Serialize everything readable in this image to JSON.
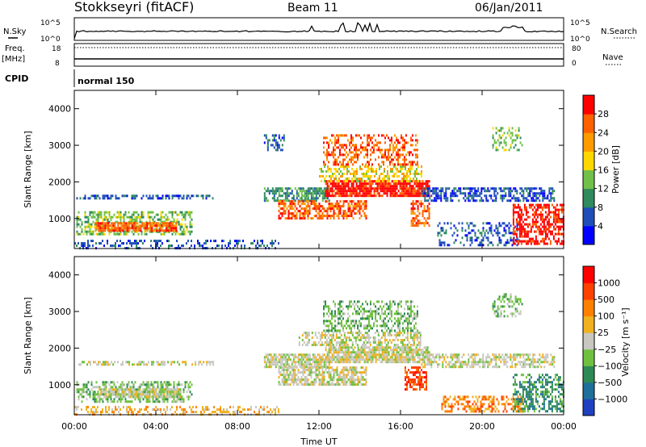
{
  "header": {
    "station": "Stokkseyri (fitACF)",
    "beam": "Beam 11",
    "date": "06/Jan/2011"
  },
  "top_panels": {
    "nsky_label": "N.Sky",
    "nsearch_label": "N.Search",
    "noise_tick_high": "10^5",
    "noise_tick_low": "10^0",
    "freq_label_1": "Freq.",
    "freq_label_2": "[MHz]",
    "freq_tick_high": "18",
    "freq_tick_low": "8",
    "nave_label": "Nave",
    "nave_tick_high": "80",
    "nave_tick_low": "0",
    "cpid_label": "CPID",
    "cpid_value": "normal 150"
  },
  "axes": {
    "ylabel": "Slant Range [km]",
    "yticks": [
      "1000",
      "2000",
      "3000",
      "4000"
    ],
    "xlabel": "Time UT",
    "xticks": [
      "00:00",
      "04:00",
      "08:00",
      "12:00",
      "16:00",
      "20:00",
      "00:00"
    ]
  },
  "colorbars": {
    "power": {
      "label": "Power [dB]",
      "ticks": [
        "4",
        "8",
        "12",
        "16",
        "20",
        "24",
        "28"
      ],
      "colors": [
        "#0000ff",
        "#1e4fb8",
        "#2f8a5e",
        "#70c04a",
        "#ffd700",
        "#ff9a00",
        "#ff6000",
        "#ff0000"
      ]
    },
    "velocity": {
      "label": "Velocity [m s⁻¹]",
      "ticks": [
        "1000",
        "500",
        "100",
        "25",
        "−25",
        "−100",
        "−500",
        "−1000"
      ],
      "colors": [
        "#2040c0",
        "#1e6f9a",
        "#2e8a55",
        "#70c040",
        "#c8c8c0",
        "#f0b020",
        "#ff8000",
        "#ff4000",
        "#ff0000"
      ]
    }
  },
  "chart_data": [
    {
      "type": "heatmap",
      "title": "Power",
      "x_range_hours": [
        0,
        24
      ],
      "y_range_km": [
        180,
        4500
      ],
      "regions": [
        {
          "t0": 0.1,
          "t1": 6.8,
          "r0": 1520,
          "r1": 1650,
          "level": 1,
          "density": 0.55
        },
        {
          "t0": 0.1,
          "t1": 5.8,
          "r0": 560,
          "r1": 1200,
          "level": 3,
          "density": 0.5
        },
        {
          "t0": 1.0,
          "t1": 5.0,
          "r0": 650,
          "r1": 900,
          "level": 6,
          "density": 0.85
        },
        {
          "t0": 0.0,
          "t1": 10.0,
          "r0": 180,
          "r1": 420,
          "level": 1,
          "density": 0.35
        },
        {
          "t0": 9.3,
          "t1": 10.3,
          "r0": 2850,
          "r1": 3300,
          "level": 1,
          "density": 0.45
        },
        {
          "t0": 9.3,
          "t1": 12.5,
          "r0": 1500,
          "r1": 1850,
          "level": 2,
          "density": 0.7
        },
        {
          "t0": 10.0,
          "t1": 14.3,
          "r0": 1000,
          "r1": 1500,
          "level": 6,
          "density": 0.6
        },
        {
          "t0": 12.3,
          "t1": 17.4,
          "r0": 1600,
          "r1": 2050,
          "level": 7,
          "density": 0.85
        },
        {
          "t0": 12.0,
          "t1": 17.0,
          "r0": 2050,
          "r1": 2450,
          "level": 4,
          "density": 0.5
        },
        {
          "t0": 12.2,
          "t1": 16.8,
          "r0": 2500,
          "r1": 3300,
          "level": 6,
          "density": 0.4
        },
        {
          "t0": 16.5,
          "t1": 17.4,
          "r0": 800,
          "r1": 1500,
          "level": 6,
          "density": 0.55
        },
        {
          "t0": 17.0,
          "t1": 23.5,
          "r0": 1500,
          "r1": 1850,
          "level": 1,
          "density": 0.55
        },
        {
          "t0": 17.8,
          "t1": 21.8,
          "r0": 300,
          "r1": 900,
          "level": 1,
          "density": 0.35
        },
        {
          "t0": 21.5,
          "t1": 24.0,
          "r0": 300,
          "r1": 1400,
          "level": 7,
          "density": 0.55
        },
        {
          "t0": 20.5,
          "t1": 22.0,
          "r0": 2900,
          "r1": 3500,
          "level": 3,
          "density": 0.35
        }
      ]
    },
    {
      "type": "heatmap",
      "title": "Velocity",
      "x_range_hours": [
        0,
        24
      ],
      "y_range_km": [
        180,
        4500
      ],
      "regions": [
        {
          "t0": 0.2,
          "t1": 6.8,
          "r0": 1520,
          "r1": 1650,
          "level": 4,
          "density": 0.55
        },
        {
          "t0": 0.1,
          "t1": 5.8,
          "r0": 560,
          "r1": 1100,
          "level": 3,
          "density": 0.5
        },
        {
          "t0": 1.2,
          "t1": 5.2,
          "r0": 650,
          "r1": 900,
          "level": 4,
          "density": 0.85
        },
        {
          "t0": 0.0,
          "t1": 10.0,
          "r0": 180,
          "r1": 420,
          "level": 5,
          "density": 0.35
        },
        {
          "t0": 9.3,
          "t1": 12.5,
          "r0": 1500,
          "r1": 1850,
          "level": 4,
          "density": 0.8
        },
        {
          "t0": 10.0,
          "t1": 14.3,
          "r0": 1000,
          "r1": 1500,
          "level": 4,
          "density": 0.7
        },
        {
          "t0": 12.3,
          "t1": 17.4,
          "r0": 1600,
          "r1": 2050,
          "level": 4,
          "density": 0.85
        },
        {
          "t0": 11.0,
          "t1": 17.0,
          "r0": 2100,
          "r1": 2450,
          "level": 4,
          "density": 0.55
        },
        {
          "t0": 12.2,
          "t1": 16.8,
          "r0": 2500,
          "r1": 3300,
          "level": 3,
          "density": 0.45
        },
        {
          "t0": 16.2,
          "t1": 17.3,
          "r0": 900,
          "r1": 1500,
          "level": 7,
          "density": 0.6
        },
        {
          "t0": 17.0,
          "t1": 23.5,
          "r0": 1500,
          "r1": 1850,
          "level": 4,
          "density": 0.55
        },
        {
          "t0": 18.0,
          "t1": 22.0,
          "r0": 300,
          "r1": 700,
          "level": 6,
          "density": 0.45
        },
        {
          "t0": 21.5,
          "t1": 24.0,
          "r0": 300,
          "r1": 1300,
          "level": 2,
          "density": 0.5
        },
        {
          "t0": 20.5,
          "t1": 22.0,
          "r0": 2900,
          "r1": 3500,
          "level": 3,
          "density": 0.35
        }
      ]
    }
  ]
}
